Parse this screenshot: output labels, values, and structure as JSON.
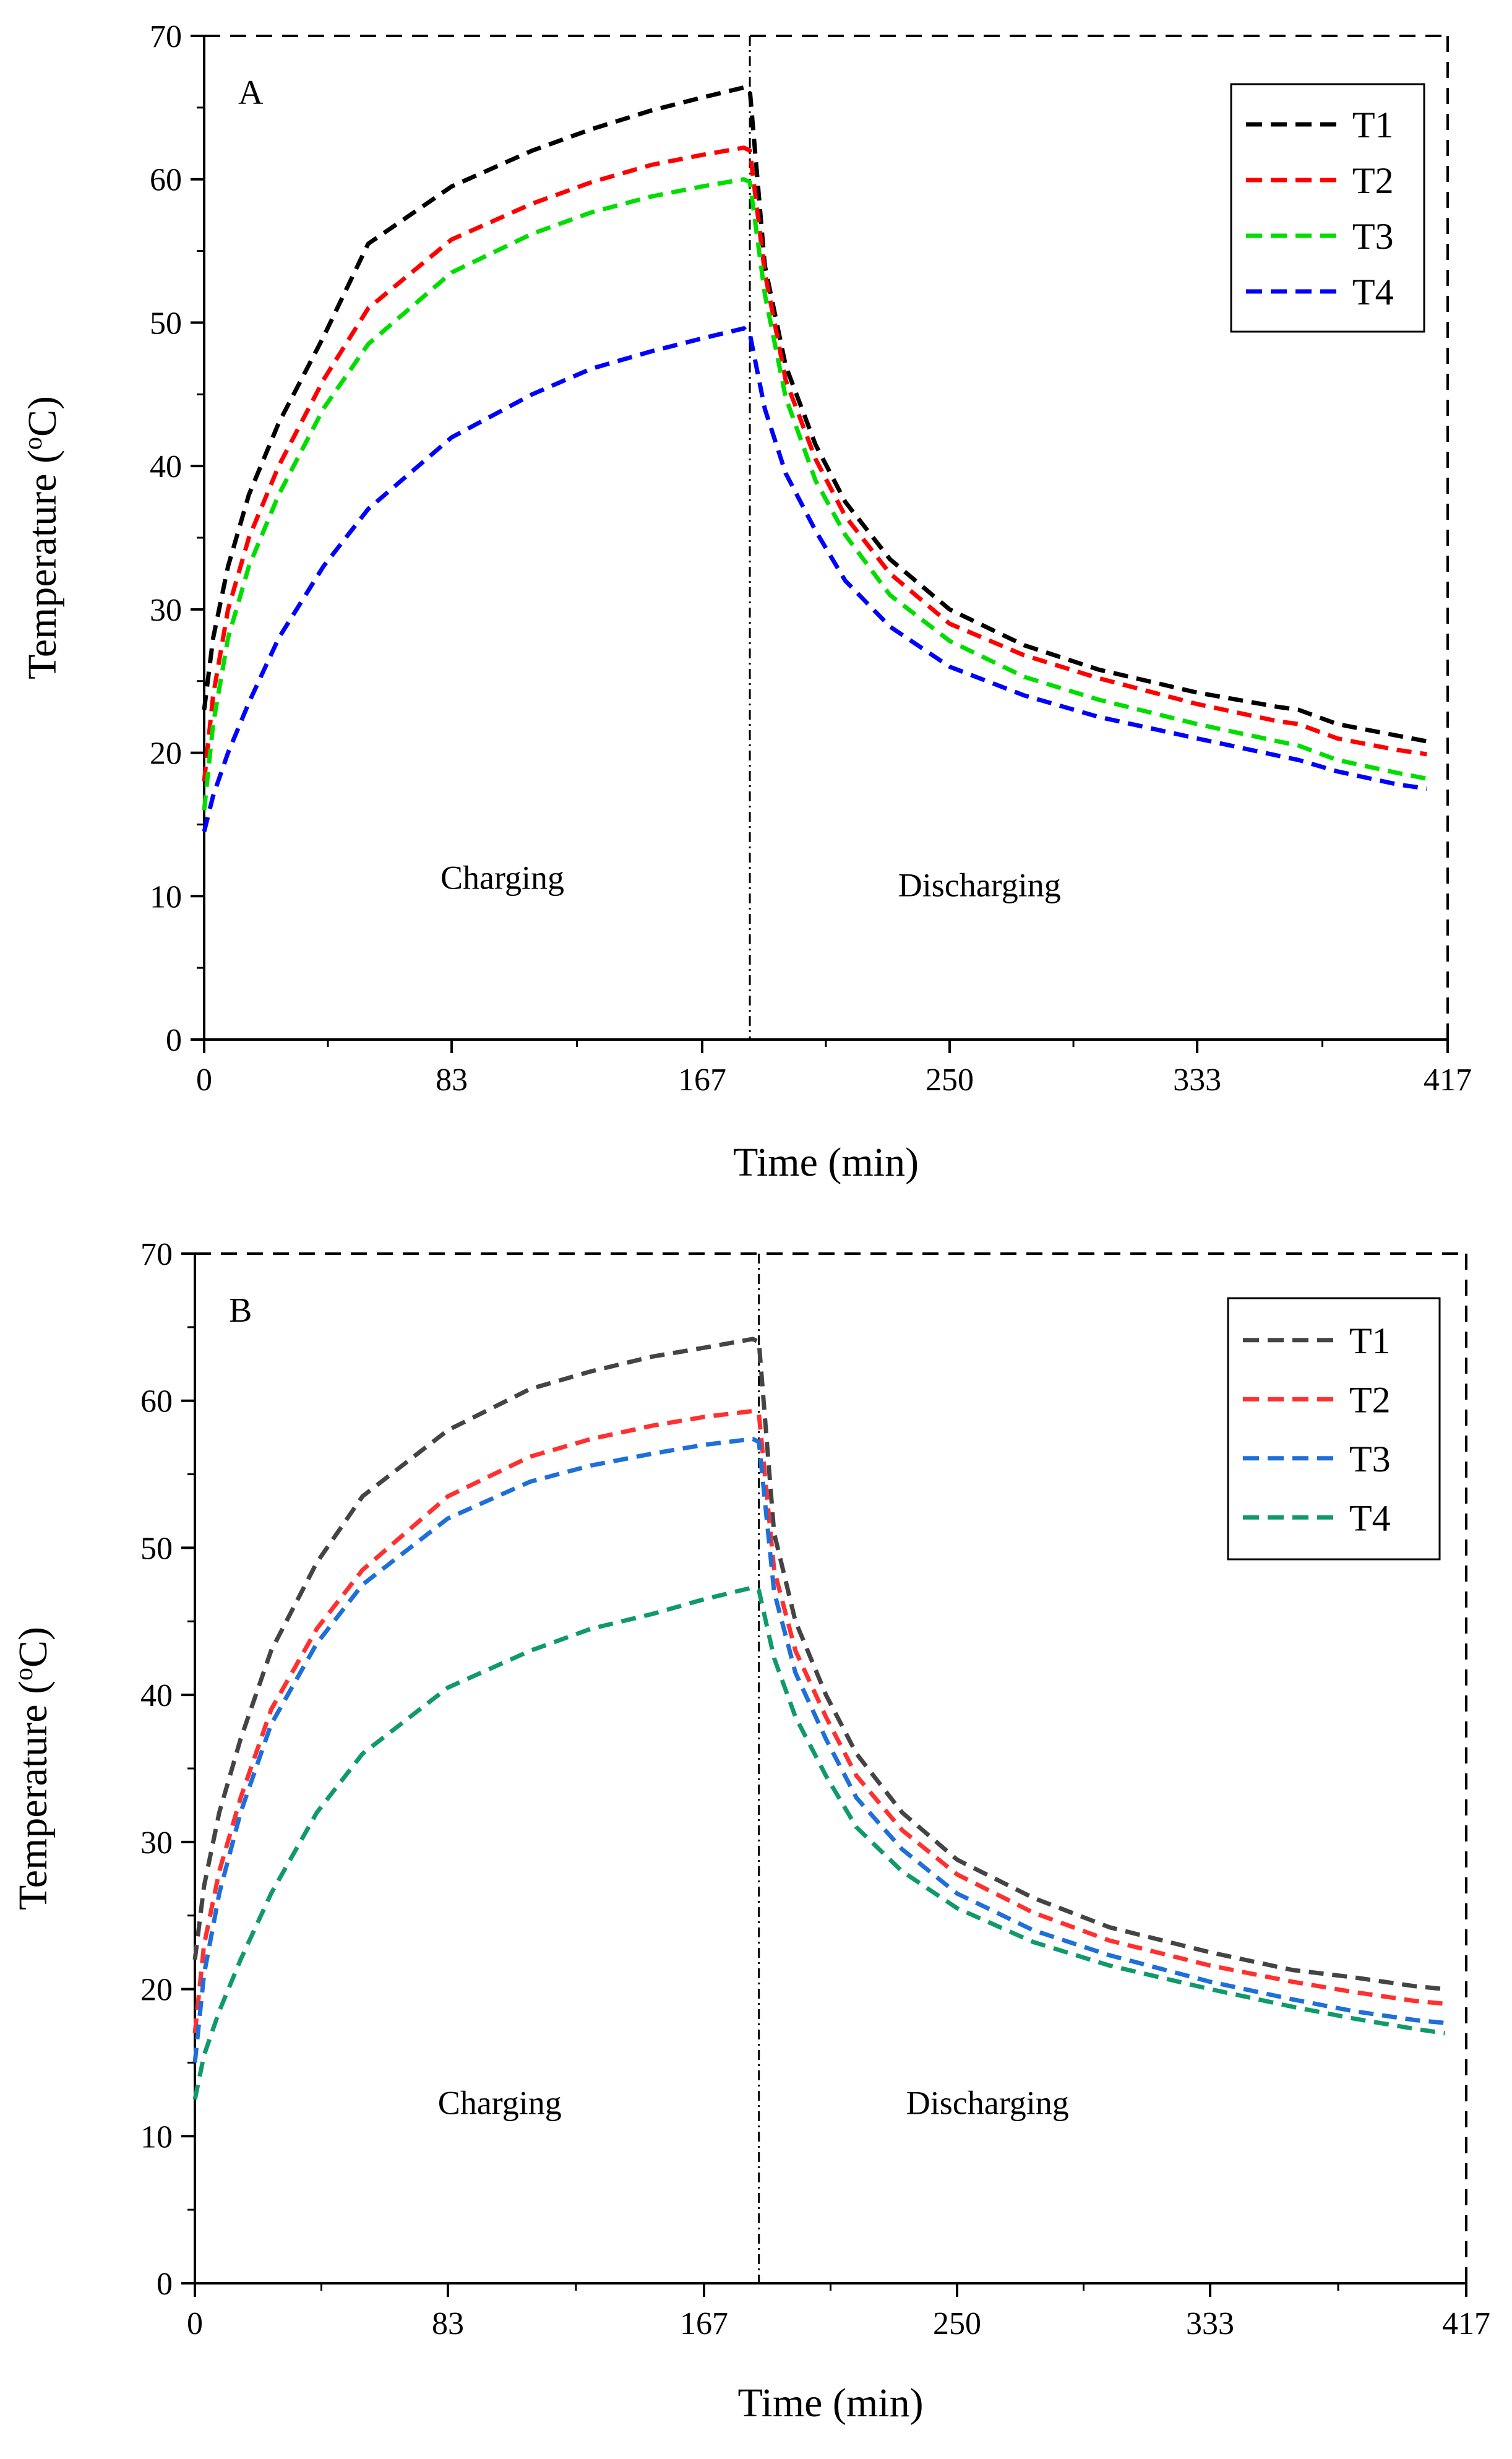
{
  "chart_data": [
    {
      "type": "line",
      "panel_label": "A",
      "xlabel": "Time (min)",
      "ylabel_main": "Temperature (",
      "ylabel_sup": "o",
      "ylabel_end": "C)",
      "xlim": [
        0,
        417
      ],
      "ylim": [
        0,
        70
      ],
      "xticks": [
        0,
        83,
        167,
        250,
        333,
        417
      ],
      "yticks": [
        0,
        10,
        20,
        30,
        40,
        50,
        60,
        70
      ],
      "phase_boundary_x": 183,
      "annotations": [
        {
          "text": "Charging",
          "x": 100,
          "y": 10.5
        },
        {
          "text": "Discharging",
          "x": 260,
          "y": 10
        }
      ],
      "legend_position": "top-right",
      "series": [
        {
          "name": "T1",
          "color": "#000000",
          "x": [
            0,
            3,
            8,
            15,
            25,
            40,
            55,
            83,
            110,
            130,
            150,
            167,
            181,
            183,
            188,
            195,
            205,
            215,
            230,
            250,
            275,
            300,
            333,
            360,
            367,
            380,
            400,
            410
          ],
          "y": [
            23,
            28,
            33,
            38,
            43,
            49,
            55.5,
            59.5,
            62,
            63.5,
            64.8,
            65.7,
            66.4,
            66.2,
            54,
            47,
            41.5,
            37.5,
            33.5,
            30,
            27.5,
            25.8,
            24.2,
            23.2,
            23,
            22,
            21.2,
            20.8
          ]
        },
        {
          "name": "T2",
          "color": "#ff0000",
          "x": [
            0,
            3,
            8,
            15,
            25,
            40,
            55,
            83,
            110,
            130,
            150,
            167,
            181,
            183,
            188,
            195,
            205,
            215,
            230,
            250,
            275,
            300,
            333,
            360,
            367,
            380,
            400,
            410
          ],
          "y": [
            18,
            24,
            30,
            35,
            40,
            46,
            51,
            55.8,
            58.3,
            59.8,
            61,
            61.7,
            62.2,
            62,
            53.5,
            46,
            40.5,
            36.5,
            32.5,
            29,
            26.8,
            25.2,
            23.4,
            22.2,
            22,
            21,
            20.2,
            19.9
          ]
        },
        {
          "name": "T3",
          "color": "#00dd00",
          "x": [
            0,
            3,
            8,
            15,
            25,
            40,
            55,
            83,
            110,
            130,
            150,
            167,
            181,
            183,
            188,
            195,
            205,
            215,
            230,
            250,
            275,
            300,
            333,
            360,
            367,
            380,
            400,
            410
          ],
          "y": [
            16,
            22,
            28,
            33,
            38,
            44,
            48.5,
            53.5,
            56.2,
            57.7,
            58.8,
            59.5,
            60,
            59.8,
            52,
            44.8,
            39,
            35.2,
            31,
            27.8,
            25.3,
            23.7,
            22,
            20.8,
            20.5,
            19.5,
            18.6,
            18.2
          ]
        },
        {
          "name": "T4",
          "color": "#0000ff",
          "x": [
            0,
            3,
            8,
            15,
            25,
            40,
            55,
            83,
            110,
            130,
            150,
            167,
            181,
            183,
            188,
            195,
            205,
            215,
            230,
            250,
            275,
            300,
            333,
            360,
            367,
            380,
            400,
            410
          ],
          "y": [
            14.5,
            17,
            20,
            23.5,
            28,
            33,
            37,
            42,
            45,
            46.8,
            48,
            48.9,
            49.6,
            49.2,
            44,
            39.5,
            35.5,
            32,
            28.8,
            26,
            24,
            22.5,
            21,
            19.8,
            19.5,
            18.7,
            17.8,
            17.5
          ]
        }
      ]
    },
    {
      "type": "line",
      "panel_label": "B",
      "xlabel": "Time (min)",
      "ylabel_main": "Temperature (",
      "ylabel_sup": "o",
      "ylabel_end": "C)",
      "xlim": [
        0,
        417
      ],
      "ylim": [
        0,
        70
      ],
      "xticks": [
        0,
        83,
        167,
        250,
        333,
        417
      ],
      "yticks": [
        0,
        10,
        20,
        30,
        40,
        50,
        60,
        70
      ],
      "phase_boundary_x": 185,
      "annotations": [
        {
          "text": "Charging",
          "x": 100,
          "y": 11.5
        },
        {
          "text": "Discharging",
          "x": 260,
          "y": 11.5
        }
      ],
      "legend_position": "top-right",
      "series": [
        {
          "name": "T1",
          "color": "#444444",
          "x": [
            0,
            3,
            8,
            15,
            25,
            40,
            55,
            83,
            110,
            130,
            150,
            167,
            183,
            185,
            190,
            197,
            207,
            217,
            232,
            250,
            275,
            300,
            333,
            360,
            380,
            400,
            410
          ],
          "y": [
            22,
            27,
            32,
            37,
            43,
            49,
            53.5,
            58,
            60.8,
            62,
            63,
            63.6,
            64.2,
            64,
            51,
            45,
            40,
            36,
            32,
            28.8,
            26.2,
            24.2,
            22.5,
            21.3,
            20.8,
            20.2,
            20
          ]
        },
        {
          "name": "T2",
          "color": "#ff3030",
          "x": [
            0,
            3,
            8,
            15,
            25,
            40,
            55,
            83,
            110,
            130,
            150,
            167,
            183,
            185,
            190,
            197,
            207,
            217,
            232,
            250,
            275,
            300,
            333,
            360,
            380,
            400,
            410
          ],
          "y": [
            17,
            23,
            28,
            33,
            39,
            44.5,
            48.5,
            53.5,
            56.2,
            57.4,
            58.3,
            58.9,
            59.3,
            59.1,
            48.5,
            43,
            38.5,
            34.5,
            30.8,
            27.8,
            25.2,
            23.3,
            21.6,
            20.5,
            19.8,
            19.2,
            19
          ]
        },
        {
          "name": "T3",
          "color": "#1e6fd9",
          "x": [
            0,
            3,
            8,
            15,
            25,
            40,
            55,
            83,
            110,
            130,
            150,
            167,
            183,
            185,
            190,
            197,
            207,
            217,
            232,
            250,
            275,
            300,
            333,
            360,
            380,
            400,
            410
          ],
          "y": [
            15,
            21,
            26.5,
            32,
            38,
            43.5,
            47.5,
            52,
            54.5,
            55.6,
            56.4,
            57,
            57.4,
            57.2,
            47,
            41.5,
            37,
            33,
            29.5,
            26.5,
            24,
            22.3,
            20.5,
            19.3,
            18.5,
            17.9,
            17.7
          ]
        },
        {
          "name": "T4",
          "color": "#109a6a",
          "x": [
            0,
            3,
            8,
            15,
            25,
            40,
            55,
            83,
            110,
            130,
            150,
            167,
            183,
            185,
            190,
            197,
            207,
            217,
            232,
            250,
            275,
            300,
            333,
            360,
            380,
            400,
            410
          ],
          "y": [
            12.5,
            15.5,
            18.5,
            22,
            26.5,
            32,
            36,
            40.5,
            43,
            44.5,
            45.5,
            46.5,
            47.3,
            47.1,
            42.5,
            38.5,
            34.5,
            31,
            28,
            25.5,
            23.2,
            21.6,
            20,
            18.8,
            18,
            17.3,
            17
          ]
        }
      ]
    }
  ]
}
